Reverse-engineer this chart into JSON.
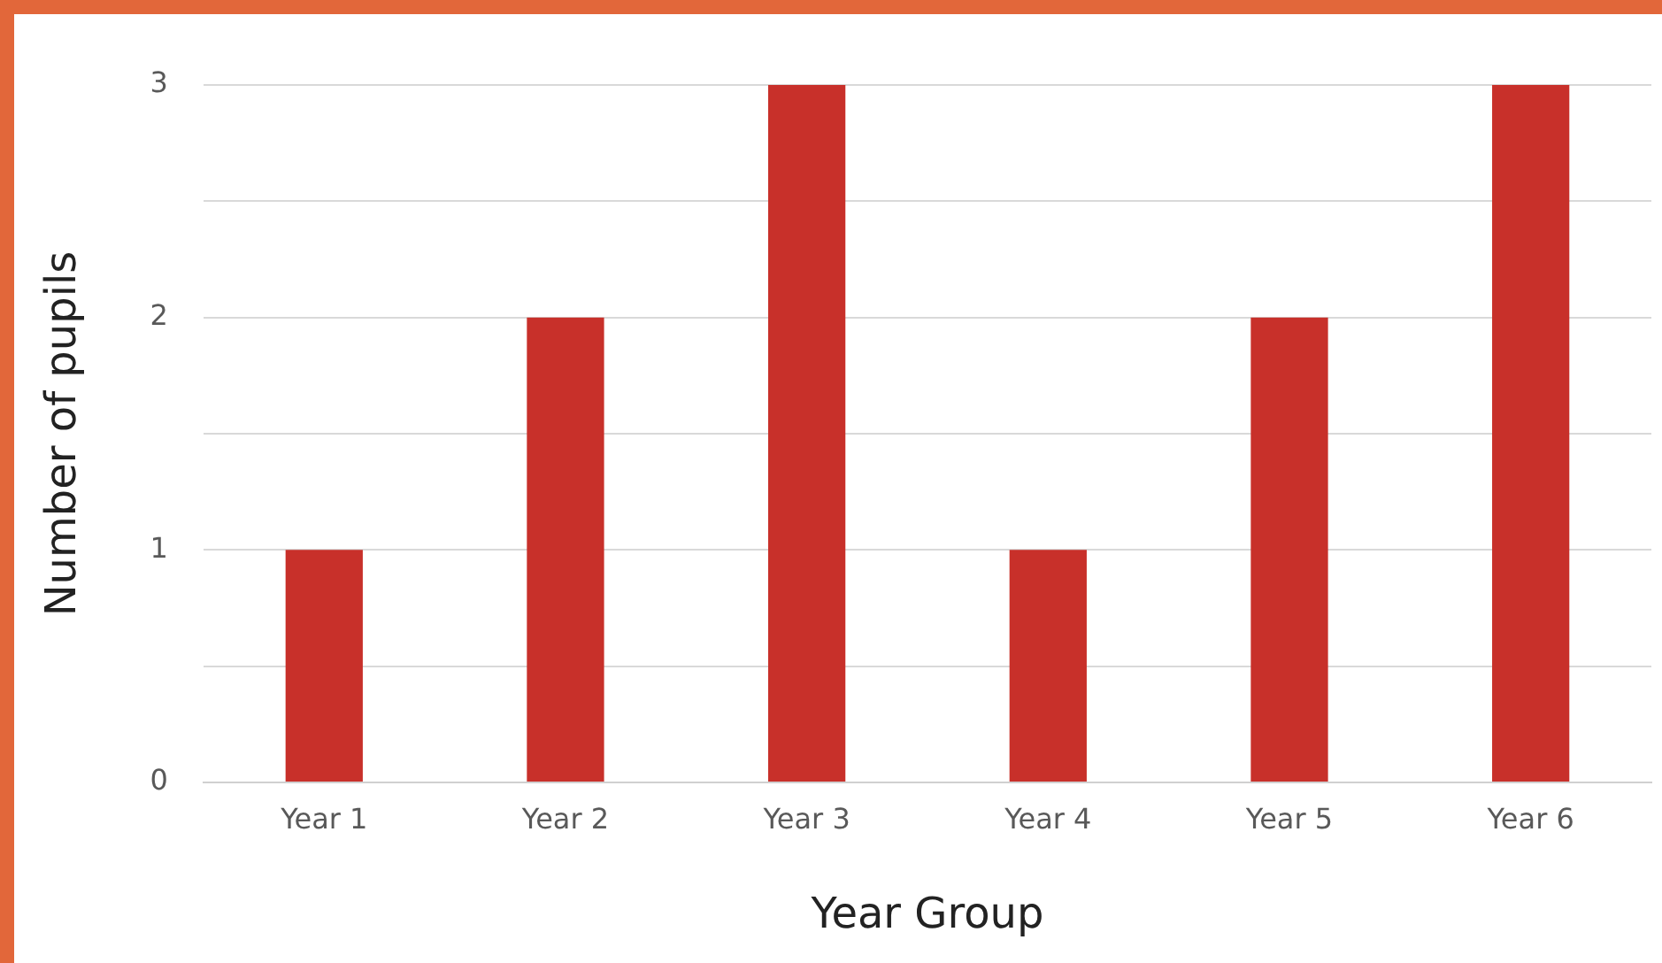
{
  "chart_data": {
    "type": "bar",
    "xlabel": "Year Group",
    "ylabel": "Number of pupils",
    "categories": [
      "Year 1",
      "Year 2",
      "Year 3",
      "Year 4",
      "Year 5",
      "Year 6"
    ],
    "values": [
      1,
      2,
      3,
      1,
      2,
      3
    ],
    "color": "#c8302a",
    "ylim": [
      0,
      3
    ],
    "yticks": [
      0,
      {
        "value": 0.5,
        "label": null
      },
      1,
      {
        "value": 1.5,
        "label": null
      },
      2,
      {
        "value": 2.5,
        "label": null
      },
      3
    ],
    "grid": "y",
    "legend": false
  }
}
